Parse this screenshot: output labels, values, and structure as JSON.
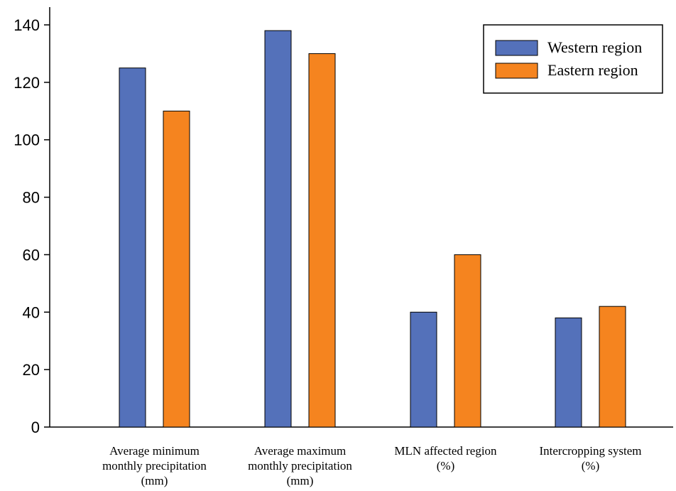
{
  "chart_data": {
    "type": "bar",
    "categories": [
      [
        "Average minimum",
        "monthly precipitation",
        "(mm)"
      ],
      [
        "Average maximum",
        "monthly precipitation",
        "(mm)"
      ],
      [
        "MLN affected region",
        "(%)"
      ],
      [
        "Intercropping system",
        "(%)"
      ]
    ],
    "series": [
      {
        "name": "Western region",
        "color": "#5471BA",
        "values": [
          125,
          138,
          40,
          38
        ]
      },
      {
        "name": "Eastern region",
        "color": "#F5841F",
        "values": [
          110,
          130,
          60,
          42
        ]
      }
    ],
    "ylim": [
      0,
      145
    ],
    "yticks": [
      0,
      20,
      40,
      60,
      80,
      100,
      120,
      140
    ],
    "legend_position": "top-right",
    "grid": false,
    "title": "",
    "xlabel": "",
    "ylabel": ""
  }
}
